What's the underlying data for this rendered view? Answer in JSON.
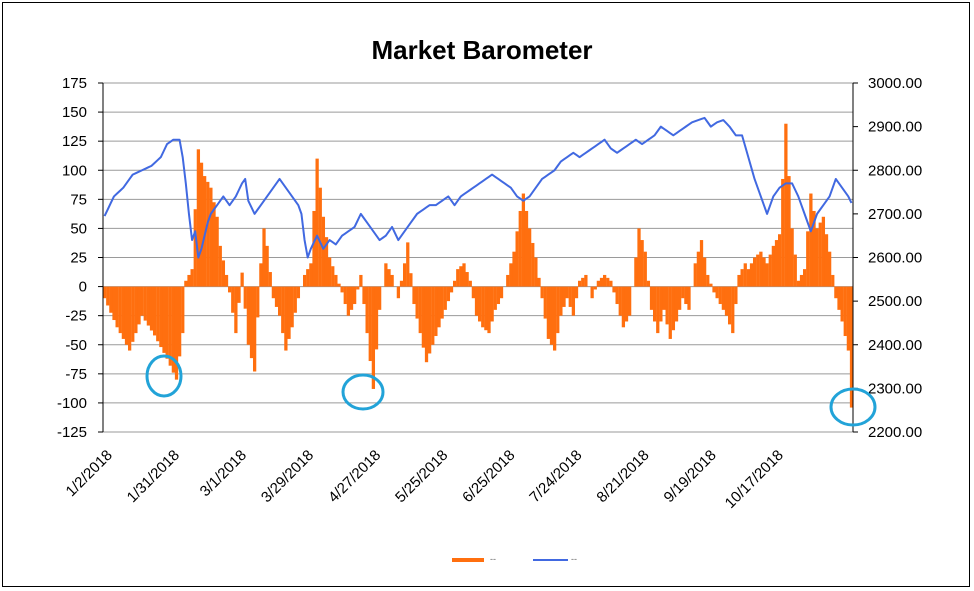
{
  "chart_data": {
    "type": "bar+line",
    "title": "Market Barometer",
    "y_left": {
      "range": [
        -125,
        175
      ],
      "ticks": [
        175,
        150,
        125,
        100,
        75,
        50,
        25,
        0,
        -25,
        -50,
        -75,
        -100,
        -125
      ]
    },
    "y_right": {
      "range": [
        2200,
        3000
      ],
      "ticks": [
        "3000.00",
        "2900.00",
        "2800.00",
        "2700.00",
        "2600.00",
        "2500.00",
        "2400.00",
        "2300.00",
        "2200.00"
      ]
    },
    "x_tick_labels": [
      "1/2/2018",
      "1/31/2018",
      "3/1/2018",
      "3/29/2018",
      "4/27/2018",
      "5/25/2018",
      "6/25/2018",
      "7/24/2018",
      "8/21/2018",
      "9/19/2018",
      "10/17/2018"
    ],
    "grid": true,
    "legend_position": "bottom-center",
    "series": [
      {
        "type": "bar",
        "color": "#ff6f0f",
        "anchors": [
          [
            0,
            -10
          ],
          [
            4,
            -35
          ],
          [
            8,
            -55
          ],
          [
            12,
            -25
          ],
          [
            16,
            -42
          ],
          [
            20,
            -62
          ],
          [
            23,
            -80
          ],
          [
            25,
            -40
          ],
          [
            26,
            5
          ],
          [
            28,
            15
          ],
          [
            30,
            118
          ],
          [
            32,
            95
          ],
          [
            34,
            85
          ],
          [
            36,
            60
          ],
          [
            37,
            35
          ],
          [
            39,
            10
          ],
          [
            40,
            -5
          ],
          [
            42,
            -40
          ],
          [
            44,
            12
          ],
          [
            46,
            -50
          ],
          [
            48,
            -73
          ],
          [
            50,
            20
          ],
          [
            51,
            50
          ],
          [
            52,
            35
          ],
          [
            54,
            -10
          ],
          [
            56,
            -25
          ],
          [
            58,
            -55
          ],
          [
            60,
            -35
          ],
          [
            62,
            -10
          ],
          [
            64,
            10
          ],
          [
            66,
            20
          ],
          [
            68,
            110
          ],
          [
            70,
            60
          ],
          [
            72,
            25
          ],
          [
            74,
            10
          ],
          [
            76,
            -5
          ],
          [
            78,
            -25
          ],
          [
            80,
            -15
          ],
          [
            82,
            10
          ],
          [
            84,
            -40
          ],
          [
            86,
            -88
          ],
          [
            88,
            -20
          ],
          [
            90,
            20
          ],
          [
            92,
            10
          ],
          [
            94,
            -10
          ],
          [
            96,
            20
          ],
          [
            97,
            38
          ],
          [
            99,
            -15
          ],
          [
            101,
            -40
          ],
          [
            103,
            -65
          ],
          [
            105,
            -50
          ],
          [
            107,
            -35
          ],
          [
            109,
            -20
          ],
          [
            111,
            -5
          ],
          [
            113,
            15
          ],
          [
            115,
            20
          ],
          [
            117,
            5
          ],
          [
            119,
            -25
          ],
          [
            121,
            -35
          ],
          [
            123,
            -40
          ],
          [
            125,
            -20
          ],
          [
            127,
            -10
          ],
          [
            129,
            10
          ],
          [
            131,
            30
          ],
          [
            133,
            65
          ],
          [
            134,
            80
          ],
          [
            136,
            50
          ],
          [
            138,
            25
          ],
          [
            140,
            -10
          ],
          [
            142,
            -45
          ],
          [
            144,
            -55
          ],
          [
            146,
            -25
          ],
          [
            148,
            -10
          ],
          [
            150,
            -25
          ],
          [
            152,
            5
          ],
          [
            154,
            10
          ],
          [
            156,
            -10
          ],
          [
            158,
            5
          ],
          [
            160,
            10
          ],
          [
            162,
            5
          ],
          [
            164,
            -15
          ],
          [
            166,
            -35
          ],
          [
            168,
            -25
          ],
          [
            170,
            25
          ],
          [
            171,
            50
          ],
          [
            173,
            30
          ],
          [
            175,
            -20
          ],
          [
            177,
            -40
          ],
          [
            179,
            -20
          ],
          [
            181,
            -45
          ],
          [
            183,
            -30
          ],
          [
            185,
            -10
          ],
          [
            187,
            -20
          ],
          [
            189,
            20
          ],
          [
            191,
            40
          ],
          [
            193,
            10
          ],
          [
            195,
            -5
          ],
          [
            197,
            -15
          ],
          [
            199,
            -25
          ],
          [
            201,
            -40
          ],
          [
            203,
            10
          ],
          [
            205,
            20
          ],
          [
            206,
            15
          ],
          [
            208,
            25
          ],
          [
            210,
            30
          ],
          [
            212,
            20
          ],
          [
            214,
            35
          ],
          [
            216,
            45
          ],
          [
            218,
            140
          ],
          [
            220,
            50
          ],
          [
            222,
            5
          ],
          [
            224,
            15
          ],
          [
            226,
            80
          ],
          [
            228,
            50
          ],
          [
            230,
            60
          ],
          [
            232,
            30
          ],
          [
            234,
            -10
          ],
          [
            236,
            -30
          ],
          [
            238,
            -55
          ],
          [
            239,
            -104
          ]
        ]
      },
      {
        "type": "line",
        "color": "#4169e1",
        "anchors": [
          [
            0,
            2695
          ],
          [
            3,
            2740
          ],
          [
            6,
            2760
          ],
          [
            9,
            2790
          ],
          [
            12,
            2800
          ],
          [
            15,
            2810
          ],
          [
            18,
            2830
          ],
          [
            20,
            2860
          ],
          [
            22,
            2870
          ],
          [
            24,
            2870
          ],
          [
            25,
            2830
          ],
          [
            26,
            2770
          ],
          [
            27,
            2700
          ],
          [
            28,
            2640
          ],
          [
            29,
            2660
          ],
          [
            30,
            2600
          ],
          [
            31,
            2620
          ],
          [
            32,
            2650
          ],
          [
            33,
            2680
          ],
          [
            34,
            2700
          ],
          [
            36,
            2720
          ],
          [
            38,
            2740
          ],
          [
            40,
            2720
          ],
          [
            42,
            2740
          ],
          [
            44,
            2770
          ],
          [
            45,
            2780
          ],
          [
            46,
            2730
          ],
          [
            48,
            2700
          ],
          [
            50,
            2720
          ],
          [
            52,
            2740
          ],
          [
            54,
            2760
          ],
          [
            56,
            2780
          ],
          [
            58,
            2760
          ],
          [
            60,
            2740
          ],
          [
            62,
            2720
          ],
          [
            63,
            2700
          ],
          [
            64,
            2640
          ],
          [
            65,
            2600
          ],
          [
            66,
            2620
          ],
          [
            68,
            2650
          ],
          [
            70,
            2620
          ],
          [
            72,
            2640
          ],
          [
            74,
            2630
          ],
          [
            76,
            2650
          ],
          [
            78,
            2660
          ],
          [
            80,
            2670
          ],
          [
            82,
            2700
          ],
          [
            84,
            2680
          ],
          [
            86,
            2660
          ],
          [
            88,
            2640
          ],
          [
            90,
            2650
          ],
          [
            92,
            2670
          ],
          [
            94,
            2640
          ],
          [
            96,
            2660
          ],
          [
            98,
            2680
          ],
          [
            100,
            2700
          ],
          [
            102,
            2710
          ],
          [
            104,
            2720
          ],
          [
            106,
            2720
          ],
          [
            108,
            2730
          ],
          [
            110,
            2740
          ],
          [
            112,
            2720
          ],
          [
            114,
            2740
          ],
          [
            116,
            2750
          ],
          [
            118,
            2760
          ],
          [
            120,
            2770
          ],
          [
            122,
            2780
          ],
          [
            124,
            2790
          ],
          [
            126,
            2780
          ],
          [
            128,
            2770
          ],
          [
            130,
            2760
          ],
          [
            132,
            2740
          ],
          [
            134,
            2730
          ],
          [
            136,
            2740
          ],
          [
            138,
            2760
          ],
          [
            140,
            2780
          ],
          [
            142,
            2790
          ],
          [
            144,
            2800
          ],
          [
            146,
            2820
          ],
          [
            148,
            2830
          ],
          [
            150,
            2840
          ],
          [
            152,
            2830
          ],
          [
            154,
            2840
          ],
          [
            156,
            2850
          ],
          [
            158,
            2860
          ],
          [
            160,
            2870
          ],
          [
            162,
            2850
          ],
          [
            164,
            2840
          ],
          [
            166,
            2850
          ],
          [
            168,
            2860
          ],
          [
            170,
            2870
          ],
          [
            172,
            2860
          ],
          [
            174,
            2870
          ],
          [
            176,
            2880
          ],
          [
            178,
            2900
          ],
          [
            180,
            2890
          ],
          [
            182,
            2880
          ],
          [
            184,
            2890
          ],
          [
            186,
            2900
          ],
          [
            188,
            2910
          ],
          [
            190,
            2915
          ],
          [
            192,
            2920
          ],
          [
            194,
            2900
          ],
          [
            196,
            2910
          ],
          [
            198,
            2915
          ],
          [
            200,
            2900
          ],
          [
            202,
            2880
          ],
          [
            204,
            2880
          ],
          [
            206,
            2830
          ],
          [
            208,
            2780
          ],
          [
            210,
            2740
          ],
          [
            212,
            2700
          ],
          [
            214,
            2740
          ],
          [
            216,
            2760
          ],
          [
            218,
            2770
          ],
          [
            220,
            2770
          ],
          [
            222,
            2740
          ],
          [
            224,
            2700
          ],
          [
            226,
            2660
          ],
          [
            228,
            2700
          ],
          [
            230,
            2720
          ],
          [
            232,
            2740
          ],
          [
            234,
            2780
          ],
          [
            236,
            2760
          ],
          [
            238,
            2740
          ],
          [
            239,
            2725
          ]
        ]
      }
    ]
  }
}
